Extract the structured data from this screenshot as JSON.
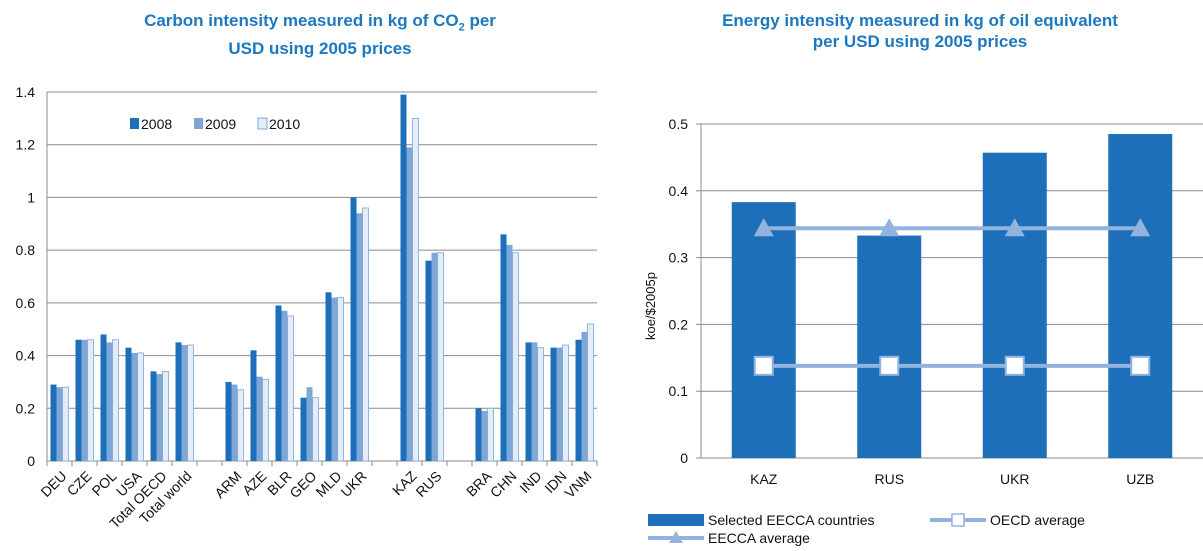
{
  "chart_data": [
    {
      "type": "bar",
      "title_line1": "Carbon intensity measured in kg of CO",
      "title_sub": "2",
      "title_line1_end": " per",
      "title_line2": "USD using 2005 prices",
      "categories": [
        "DEU",
        "CZE",
        "POL",
        "USA",
        "Total OECD",
        "Total world",
        "",
        "ARM",
        "AZE",
        "BLR",
        "GEO",
        "MLD",
        "UKR",
        "",
        "KAZ",
        "RUS",
        "",
        "BRA",
        "CHN",
        "IND",
        "IDN",
        "VNM"
      ],
      "series": [
        {
          "name": "2008",
          "color": "#1c6fb8",
          "values": [
            0.29,
            0.46,
            0.48,
            0.43,
            0.34,
            0.45,
            null,
            0.3,
            0.42,
            0.59,
            0.24,
            0.64,
            1.0,
            null,
            1.39,
            0.76,
            null,
            0.2,
            0.86,
            0.45,
            0.43,
            0.46
          ]
        },
        {
          "name": "2009",
          "color": "#7ea6d6",
          "values": [
            0.28,
            0.46,
            0.45,
            0.41,
            0.33,
            0.44,
            null,
            0.29,
            0.32,
            0.57,
            0.28,
            0.62,
            0.94,
            null,
            1.19,
            0.79,
            null,
            0.19,
            0.82,
            0.45,
            0.43,
            0.49
          ]
        },
        {
          "name": "2010",
          "color": "#e4ecf8",
          "values": [
            0.28,
            0.46,
            0.46,
            0.41,
            0.34,
            0.44,
            null,
            0.27,
            0.31,
            0.55,
            0.24,
            0.62,
            0.96,
            null,
            1.3,
            0.79,
            null,
            0.2,
            0.79,
            0.43,
            0.44,
            0.52
          ]
        }
      ],
      "ylim": [
        0,
        1.4
      ],
      "yticks": [
        "0",
        "0.2",
        "0.4",
        "0.6",
        "0.8",
        "1",
        "1.2",
        "1.4"
      ],
      "grid": true,
      "legend": "top-left"
    },
    {
      "type": "bar+line",
      "title_line1": "Energy intensity measured in kg of oil equivalent",
      "title_line2": "per USD using 2005 prices",
      "ylabel": "koe/$2005p",
      "categories": [
        "KAZ",
        "RUS",
        "UKR",
        "UZB"
      ],
      "bar_series": {
        "name": "Selected EECCA countries",
        "color": "#1c6fb8",
        "values": [
          0.383,
          0.333,
          0.457,
          0.485
        ]
      },
      "line_series": [
        {
          "name": "OECD average",
          "color": "#93b3df",
          "marker": "square",
          "values": [
            0.138,
            0.138,
            0.138,
            0.138
          ]
        },
        {
          "name": "EECCA average",
          "color": "#93b3df",
          "marker": "triangle",
          "values": [
            0.344,
            0.344,
            0.344,
            0.344
          ]
        }
      ],
      "ylim": [
        0,
        0.5
      ],
      "yticks": [
        "0",
        "0.1",
        "0.2",
        "0.3",
        "0.4",
        "0.5"
      ],
      "grid": true,
      "legend": "bottom"
    }
  ]
}
